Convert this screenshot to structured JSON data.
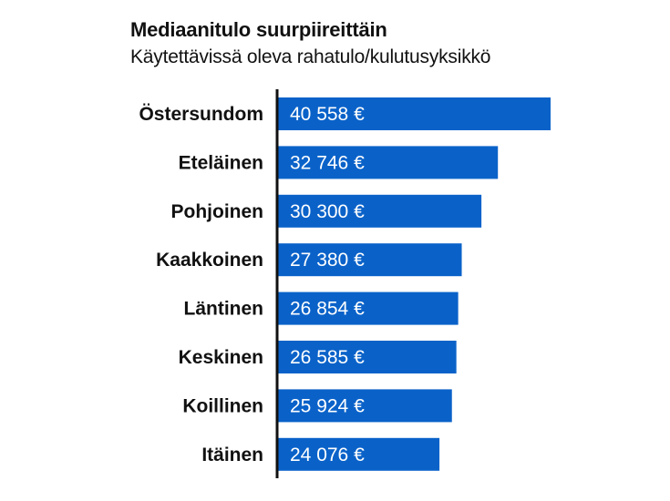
{
  "chart_data": {
    "type": "bar",
    "orientation": "horizontal",
    "title": "Mediaanitulo suurpiireittäin",
    "subtitle": "Käytettävissä oleva rahatulo/kulutusyksikkö",
    "categories": [
      "Östersundom",
      "Eteläinen",
      "Pohjoinen",
      "Kaakkoinen",
      "Läntinen",
      "Keskinen",
      "Koillinen",
      "Itäinen"
    ],
    "values": [
      40558,
      32746,
      30300,
      27380,
      26854,
      26585,
      25924,
      24076
    ],
    "value_labels": [
      "40 558 €",
      "32 746 €",
      "30 300 €",
      "27 380 €",
      "26 854 €",
      "26 585 €",
      "25 924 €",
      "24 076 €"
    ],
    "xlim": [
      0,
      40558
    ],
    "grid": false,
    "legend": "none",
    "colors": {
      "bar": "#0a62c9",
      "axis": "#111111",
      "value_text": "#ffffff",
      "label_text": "#111111"
    }
  }
}
